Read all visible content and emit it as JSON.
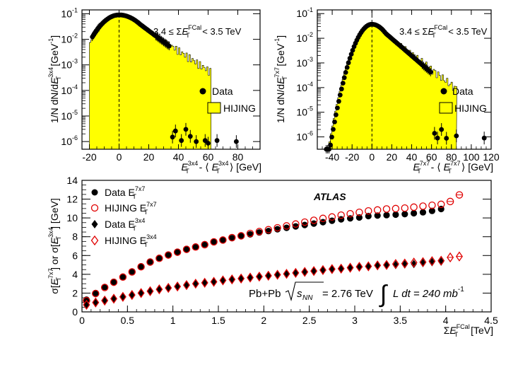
{
  "chart_data": [
    {
      "id": "top-left",
      "type": "histogram",
      "subtype": "log-y",
      "ylabel": "1/N dN/dE_T^3x4 [GeV^-1]",
      "xlabel": "E_T^3x4 - ⟨E_T^3x4⟩ [GeV]",
      "xlim": [
        -25,
        95
      ],
      "ylim_log10": [
        -6.3,
        -0.85
      ],
      "xticks": [
        -20,
        0,
        20,
        40,
        60,
        80
      ],
      "yticks_exp": [
        -1,
        -2,
        -3,
        -4,
        -5,
        -6
      ],
      "annotation": "3.4 ≤ ΣE_T^FCal < 3.5 TeV",
      "legend": [
        {
          "marker": "filled-circle",
          "label": "Data"
        },
        {
          "marker": "yellow-box",
          "label": "HIJING"
        }
      ],
      "mean_line_x": 0,
      "series": [
        {
          "name": "Data",
          "gauss": {
            "sigma": 10.9,
            "peak": 0.09,
            "tail_scale": 16.0,
            "x_min": -18,
            "x_max": 34,
            "step": 0.75
          }
        },
        {
          "name": "Data tail",
          "points": [
            [
              36,
              1.5e-06
            ],
            [
              38,
              2.6e-06
            ],
            [
              42,
              1.1e-06
            ],
            [
              45,
              3e-06
            ],
            [
              48,
              1.6e-06
            ],
            [
              52,
              1e-06
            ],
            [
              58,
              1.1e-06
            ],
            [
              60,
              8.6e-07
            ],
            [
              66,
              1.1e-06
            ],
            [
              79,
              1e-06
            ]
          ]
        },
        {
          "name": "HIJING",
          "gauss": {
            "sigma": 10.6,
            "peak": 0.088,
            "tail_scale": 18.0,
            "x_min": -20,
            "x_max": 62,
            "bin": 1.0
          }
        }
      ]
    },
    {
      "id": "top-right",
      "type": "histogram",
      "subtype": "log-y",
      "ylabel": "1/N dN/dE_T^7x7 [GeV^-1]",
      "xlabel": "E_T^7x7 - ⟨E_T^7x7⟩ [GeV]",
      "xlim": [
        -55,
        120
      ],
      "ylim_log10": [
        -6.5,
        -0.85
      ],
      "xticks": [
        -40,
        -20,
        0,
        20,
        40,
        60,
        80,
        100,
        120
      ],
      "yticks_exp": [
        -1,
        -2,
        -3,
        -4,
        -5,
        -6
      ],
      "annotation": "3.4 ≤ ΣE_T^FCal < 3.5 TeV",
      "legend": [
        {
          "marker": "filled-circle",
          "label": "Data"
        },
        {
          "marker": "yellow-box",
          "label": "HIJING"
        }
      ],
      "mean_line_x": 0,
      "series": [
        {
          "name": "Data",
          "gauss": {
            "sigma": 10.6,
            "peak": 0.037,
            "tail_scale": 20.0,
            "x_min": -46,
            "x_max": 60,
            "step": 1.4
          }
        },
        {
          "name": "Data tail",
          "points": [
            [
              63,
              1.4e-06
            ],
            [
              66,
              9e-07
            ],
            [
              70,
              2e-06
            ],
            [
              75,
              8.8e-07
            ],
            [
              85,
              1.1e-06
            ],
            [
              113,
              9e-07
            ]
          ]
        },
        {
          "name": "HIJING",
          "gauss": {
            "sigma": 11.0,
            "peak": 0.036,
            "tail_scale": 22.0,
            "x_min": -48,
            "x_max": 85,
            "bin": 1.5
          }
        }
      ]
    },
    {
      "id": "bottom",
      "type": "scatter",
      "ylabel": "σ[E_T^7x7] or σ[E_T^3x4] [GeV]",
      "xlabel": "ΣE_T^FCal [TeV]",
      "xlim": [
        0,
        4.5
      ],
      "ylim": [
        0,
        14
      ],
      "xticks": [
        0,
        0.5,
        1,
        1.5,
        2,
        2.5,
        3,
        3.5,
        4,
        4.5
      ],
      "yticks": [
        0,
        2,
        4,
        6,
        8,
        10,
        12,
        14
      ],
      "experiment": "ATLAS",
      "collision": "Pb+Pb",
      "energy": "√s_NN = 2.76 TeV",
      "luminosity": "∫ L dt = 240 mb^-1",
      "legend": [
        {
          "marker": "filled-circle",
          "label": "Data E_T^7x7"
        },
        {
          "marker": "open-circle",
          "label": "HIJING E_T^7x7"
        },
        {
          "marker": "filled-diamond",
          "label": "Data E_T^3x4"
        },
        {
          "marker": "open-diamond",
          "label": "HIJING E_T^3x4"
        }
      ],
      "series": [
        {
          "name": "Data E_T^7x7",
          "marker": "filled-circle",
          "x": [
            0.05,
            0.15,
            0.25,
            0.35,
            0.45,
            0.55,
            0.65,
            0.75,
            0.85,
            0.95,
            1.05,
            1.15,
            1.25,
            1.35,
            1.45,
            1.55,
            1.65,
            1.75,
            1.85,
            1.95,
            2.05,
            2.15,
            2.25,
            2.35,
            2.45,
            2.55,
            2.65,
            2.75,
            2.85,
            2.95,
            3.05,
            3.15,
            3.25,
            3.35,
            3.45,
            3.55,
            3.65,
            3.75,
            3.85,
            3.95
          ],
          "y": [
            1.3,
            2.0,
            2.65,
            3.2,
            3.75,
            4.3,
            4.85,
            5.35,
            5.75,
            6.1,
            6.4,
            6.7,
            6.95,
            7.2,
            7.45,
            7.65,
            7.85,
            8.05,
            8.25,
            8.45,
            8.6,
            8.8,
            8.95,
            9.1,
            9.25,
            9.4,
            9.55,
            9.7,
            9.85,
            9.95,
            10.05,
            10.2,
            10.25,
            10.3,
            10.35,
            10.4,
            10.5,
            10.6,
            10.75,
            10.95
          ]
        },
        {
          "name": "HIJING E_T^7x7",
          "marker": "open-circle",
          "x": [
            0.05,
            0.15,
            0.25,
            0.35,
            0.45,
            0.55,
            0.65,
            0.75,
            0.85,
            0.95,
            1.05,
            1.15,
            1.25,
            1.35,
            1.45,
            1.55,
            1.65,
            1.75,
            1.85,
            1.95,
            2.05,
            2.15,
            2.25,
            2.35,
            2.45,
            2.55,
            2.65,
            2.75,
            2.85,
            2.95,
            3.05,
            3.15,
            3.25,
            3.35,
            3.45,
            3.55,
            3.65,
            3.75,
            3.85,
            3.95,
            4.05,
            4.15
          ],
          "y": [
            1.2,
            1.95,
            2.6,
            3.15,
            3.7,
            4.25,
            4.8,
            5.3,
            5.7,
            6.05,
            6.35,
            6.65,
            6.9,
            7.15,
            7.45,
            7.65,
            7.9,
            8.1,
            8.35,
            8.55,
            8.75,
            8.95,
            9.15,
            9.35,
            9.55,
            9.75,
            9.95,
            10.1,
            10.3,
            10.45,
            10.6,
            10.75,
            10.85,
            10.95,
            11.0,
            11.05,
            11.15,
            11.25,
            11.35,
            11.45,
            11.75,
            12.45
          ]
        },
        {
          "name": "Data E_T^3x4",
          "marker": "filled-diamond",
          "x": [
            0.05,
            0.15,
            0.25,
            0.35,
            0.45,
            0.55,
            0.65,
            0.75,
            0.85,
            0.95,
            1.05,
            1.15,
            1.25,
            1.35,
            1.45,
            1.55,
            1.65,
            1.75,
            1.85,
            1.95,
            2.05,
            2.15,
            2.25,
            2.35,
            2.45,
            2.55,
            2.65,
            2.75,
            2.85,
            2.95,
            3.05,
            3.15,
            3.25,
            3.35,
            3.45,
            3.55,
            3.65,
            3.75,
            3.85,
            3.95
          ],
          "y": [
            0.8,
            1.05,
            1.25,
            1.45,
            1.65,
            1.85,
            2.05,
            2.25,
            2.45,
            2.6,
            2.75,
            2.9,
            3.0,
            3.15,
            3.25,
            3.4,
            3.5,
            3.6,
            3.7,
            3.8,
            3.9,
            4.0,
            4.05,
            4.15,
            4.25,
            4.35,
            4.45,
            4.5,
            4.6,
            4.65,
            4.75,
            4.8,
            4.9,
            4.95,
            5.0,
            5.05,
            5.1,
            5.2,
            5.3,
            5.35
          ]
        },
        {
          "name": "HIJING E_T^3x4",
          "marker": "open-diamond",
          "x": [
            0.05,
            0.15,
            0.25,
            0.35,
            0.45,
            0.55,
            0.65,
            0.75,
            0.85,
            0.95,
            1.05,
            1.15,
            1.25,
            1.35,
            1.45,
            1.55,
            1.65,
            1.75,
            1.85,
            1.95,
            2.05,
            2.15,
            2.25,
            2.35,
            2.45,
            2.55,
            2.65,
            2.75,
            2.85,
            2.95,
            3.05,
            3.15,
            3.25,
            3.35,
            3.45,
            3.55,
            3.65,
            3.75,
            3.85,
            3.95,
            4.05,
            4.15
          ],
          "y": [
            0.75,
            1.0,
            1.2,
            1.4,
            1.6,
            1.8,
            2.0,
            2.2,
            2.4,
            2.55,
            2.7,
            2.85,
            3.0,
            3.1,
            3.2,
            3.35,
            3.45,
            3.55,
            3.65,
            3.75,
            3.85,
            3.95,
            4.05,
            4.15,
            4.25,
            4.35,
            4.45,
            4.55,
            4.6,
            4.7,
            4.8,
            4.85,
            4.95,
            5.0,
            5.1,
            5.15,
            5.25,
            5.3,
            5.4,
            5.45,
            5.8,
            5.9
          ]
        }
      ]
    }
  ],
  "labels": {
    "tl_ylabel_pre": "1/N dN/d",
    "tl_ylabel_sup": "3x4",
    "tl_ylabel_post": " [GeV",
    "tl_ylabel_unit_sup": "-1",
    "tl_ylabel_close": "]",
    "tr_ylabel_sup": "7x7",
    "tl_xlabel_sup": "3x4",
    "tl_xlabel_mid": " - ⟨ ",
    "tl_xlabel_end": " ⟩ [GeV]",
    "tr_xlabel_sup": "7x7",
    "fcal_pre": "3.4 ≤ Σ",
    "fcal_sup": "FCal",
    "fcal_post": " < 3.5 TeV",
    "E": "E",
    "T": "T",
    "data": "Data",
    "hijing": "HIJING",
    "b_ylabel_sigma": "σ[",
    "b_ylabel_or": "] or σ[",
    "b_ylabel_close": "] [GeV]",
    "b_xlabel_sigma": "Σ",
    "b_xlabel_unit": " [TeV]",
    "atlas": "ATLAS",
    "pbpb": "Pb+Pb",
    "sqrt": "√",
    "s": "s",
    "nn": "NN",
    "energy_val": " = 2.76 TeV",
    "integral": "∫",
    "lumi_L": "L dt = 240 mb",
    "lumi_sup": "-1",
    "legend_data_7x7": "Data E",
    "legend_hijing_7x7": "HIJING E",
    "legend_data_3x4": "Data E",
    "legend_hijing_3x4": "HIJING E",
    "legend_sup_7x7": "7x7",
    "legend_sup_3x4": "3x4",
    "ten": "10"
  }
}
